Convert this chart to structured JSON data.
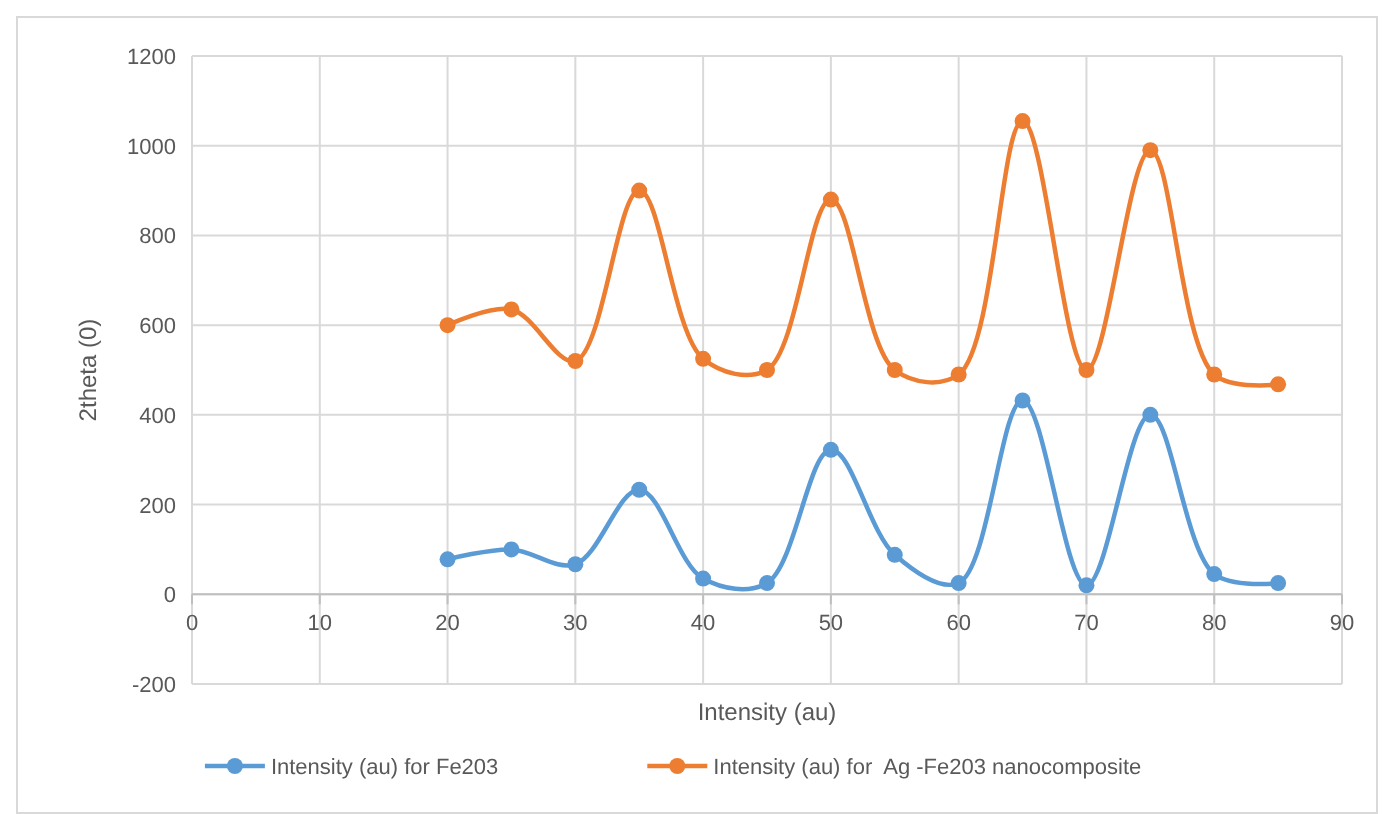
{
  "chart_data": {
    "type": "line",
    "xlabel": "Intensity (au)",
    "ylabel": "2theta (0)",
    "x": [
      20,
      25,
      30,
      35,
      40,
      45,
      50,
      55,
      60,
      65,
      70,
      75,
      80,
      85
    ],
    "series": [
      {
        "name": "Intensity (au) for Fe203",
        "color": "#5b9bd5",
        "values": [
          78,
          100,
          67,
          233,
          35,
          25,
          322,
          88,
          25,
          432,
          20,
          400,
          45,
          25
        ]
      },
      {
        "name": "Intensity (au) for  Ag -Fe203 nanocomposite",
        "color": "#ed7d31",
        "values": [
          600,
          635,
          520,
          900,
          525,
          500,
          880,
          500,
          490,
          1055,
          500,
          990,
          490,
          468
        ]
      }
    ],
    "xlim": [
      0,
      90
    ],
    "xticks": [
      0,
      10,
      20,
      30,
      40,
      50,
      60,
      70,
      80,
      90
    ],
    "ylim": [
      -200,
      1200
    ],
    "yticks": [
      -200,
      0,
      200,
      400,
      600,
      800,
      1000,
      1200
    ],
    "grid": true,
    "legend": "bottom",
    "marker": "circle",
    "line_style": "solid"
  }
}
